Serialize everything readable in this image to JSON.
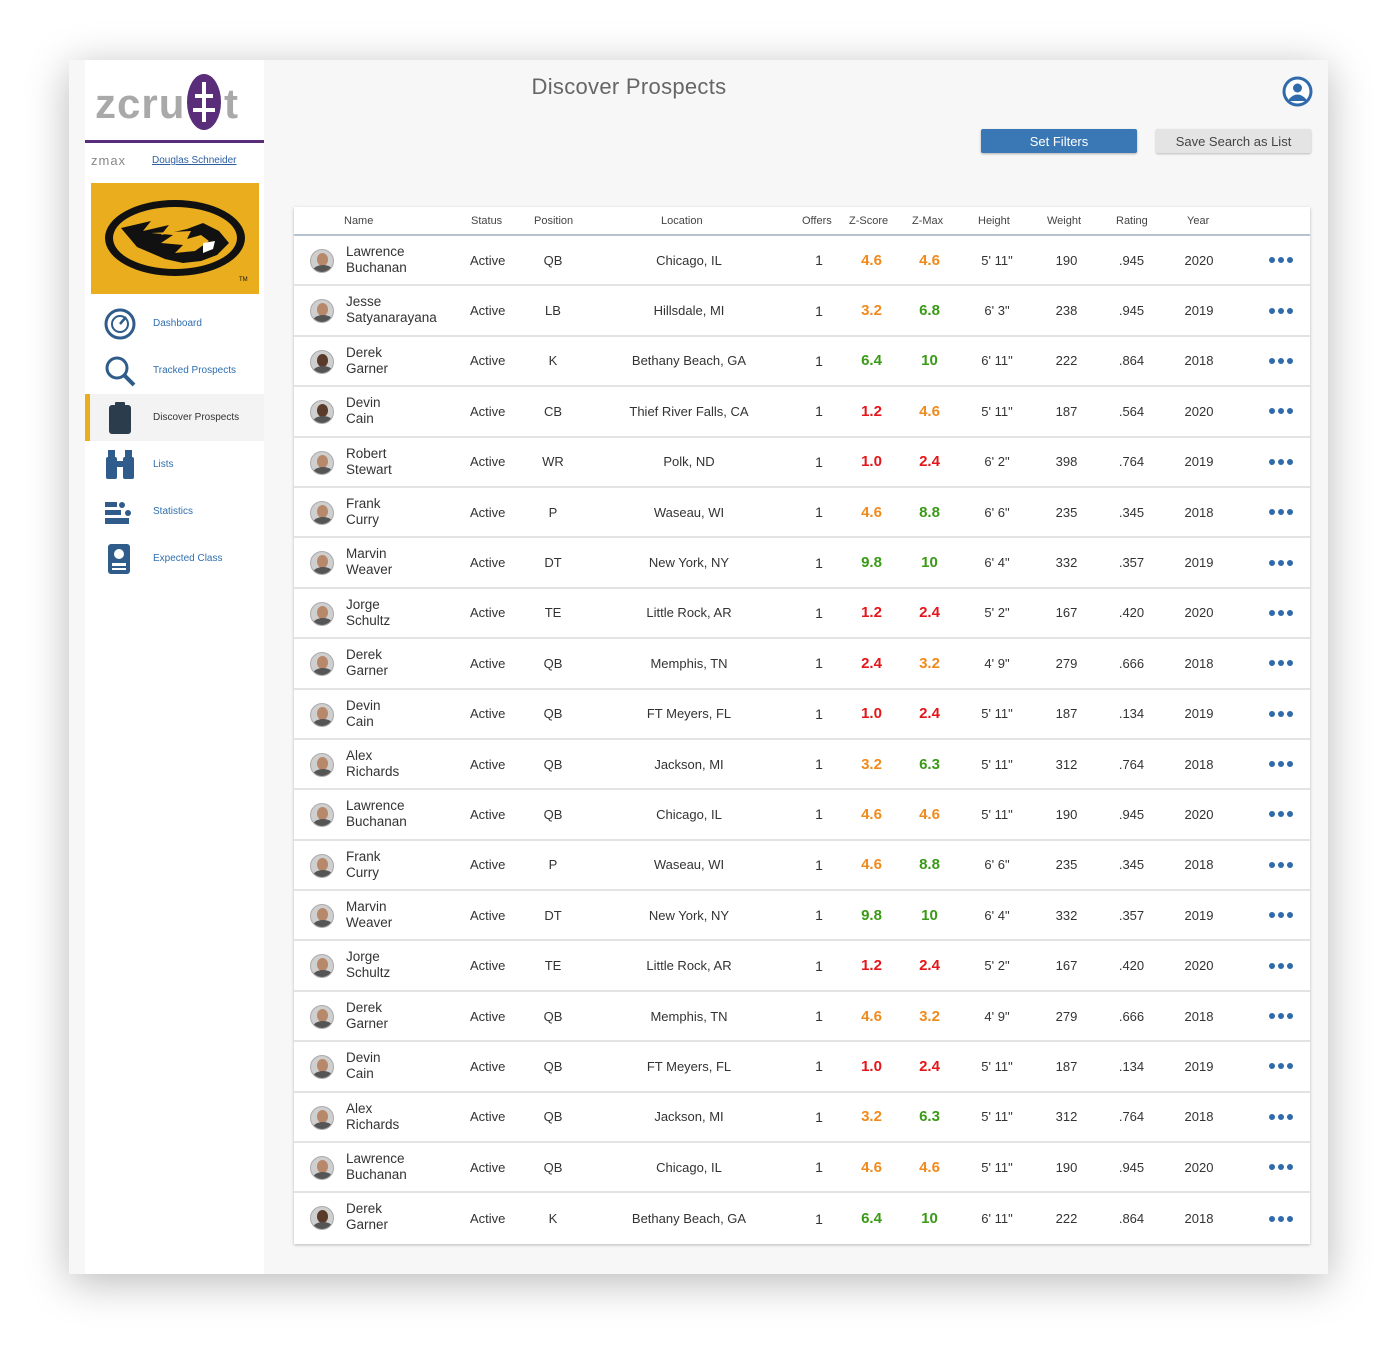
{
  "app": {
    "logo_text": "zcruit",
    "partner_text": "zmax",
    "user_name": "Douglas Schneider"
  },
  "page": {
    "title": "Discover Prospects"
  },
  "colors": {
    "accent": "#3a78b5",
    "brand_purple": "#5a2d7a",
    "team_gold": "#e9ad1e",
    "score_high": "#3a9a16",
    "score_mid": "#f08a1c",
    "score_low": "#e4161a"
  },
  "nav": [
    {
      "label": "Dashboard",
      "icon": "dashboard-gauge-icon"
    },
    {
      "label": "Tracked Prospects",
      "icon": "search-icon"
    },
    {
      "label": "Discover Prospects",
      "icon": "clipboard-icon",
      "active": true
    },
    {
      "label": "Lists",
      "icon": "binoculars-icon"
    },
    {
      "label": "Statistics",
      "icon": "statistics-icon"
    },
    {
      "label": "Expected Class",
      "icon": "id-badge-icon"
    }
  ],
  "buttons": {
    "filters": "Set Filters",
    "save": "Save Search as List"
  },
  "table": {
    "headers": {
      "name": "Name",
      "status": "Status",
      "position": "Position",
      "location": "Location",
      "offers": "Offers",
      "zscore": "Z-Score",
      "zmax": "Z-Max",
      "height": "Height",
      "weight": "Weight",
      "rating": "Rating",
      "year": "Year"
    },
    "rows": [
      {
        "first": "Lawrence",
        "last": "Buchanan",
        "status": "Active",
        "pos": "QB",
        "loc": "Chicago, IL",
        "offers": "1",
        "z": "4.6",
        "zc": "mid",
        "zm": "4.6",
        "zmc": "mid",
        "ht": "5' 11\"",
        "wt": "190",
        "rt": ".945",
        "yr": "2020",
        "dark": false
      },
      {
        "first": "Jesse",
        "last": "Satyanarayana",
        "status": "Active",
        "pos": "LB",
        "loc": "Hillsdale, MI",
        "offers": "1",
        "z": "3.2",
        "zc": "mid",
        "zm": "6.8",
        "zmc": "high",
        "ht": "6' 3\"",
        "wt": "238",
        "rt": ".945",
        "yr": "2019",
        "dark": false
      },
      {
        "first": "Derek",
        "last": "Garner",
        "status": "Active",
        "pos": "K",
        "loc": "Bethany Beach, GA",
        "offers": "1",
        "z": "6.4",
        "zc": "high",
        "zm": "10",
        "zmc": "high",
        "ht": "6' 11\"",
        "wt": "222",
        "rt": ".864",
        "yr": "2018",
        "dark": true
      },
      {
        "first": "Devin",
        "last": "Cain",
        "status": "Active",
        "pos": "CB",
        "loc": "Thief River Falls, CA",
        "offers": "1",
        "z": "1.2",
        "zc": "low",
        "zm": "4.6",
        "zmc": "mid",
        "ht": "5' 11\"",
        "wt": "187",
        "rt": ".564",
        "yr": "2020",
        "dark": true
      },
      {
        "first": "Robert",
        "last": "Stewart",
        "status": "Active",
        "pos": "WR",
        "loc": "Polk, ND",
        "offers": "1",
        "z": "1.0",
        "zc": "low",
        "zm": "2.4",
        "zmc": "low",
        "ht": "6' 2\"",
        "wt": "398",
        "rt": ".764",
        "yr": "2019",
        "dark": false
      },
      {
        "first": "Frank",
        "last": "Curry",
        "status": "Active",
        "pos": "P",
        "loc": "Waseau, WI",
        "offers": "1",
        "z": "4.6",
        "zc": "mid",
        "zm": "8.8",
        "zmc": "high",
        "ht": "6' 6\"",
        "wt": "235",
        "rt": ".345",
        "yr": "2018",
        "dark": false
      },
      {
        "first": "Marvin",
        "last": "Weaver",
        "status": "Active",
        "pos": "DT",
        "loc": "New York, NY",
        "offers": "1",
        "z": "9.8",
        "zc": "high",
        "zm": "10",
        "zmc": "high",
        "ht": "6' 4\"",
        "wt": "332",
        "rt": ".357",
        "yr": "2019",
        "dark": false
      },
      {
        "first": "Jorge",
        "last": "Schultz",
        "status": "Active",
        "pos": "TE",
        "loc": "Little Rock, AR",
        "offers": "1",
        "z": "1.2",
        "zc": "low",
        "zm": "2.4",
        "zmc": "low",
        "ht": "5' 2\"",
        "wt": "167",
        "rt": ".420",
        "yr": "2020",
        "dark": false
      },
      {
        "first": "Derek",
        "last": "Garner",
        "status": "Active",
        "pos": "QB",
        "loc": "Memphis, TN",
        "offers": "1",
        "z": "2.4",
        "zc": "low",
        "zm": "3.2",
        "zmc": "mid",
        "ht": "4' 9\"",
        "wt": "279",
        "rt": ".666",
        "yr": "2018",
        "dark": false
      },
      {
        "first": "Devin",
        "last": "Cain",
        "status": "Active",
        "pos": "QB",
        "loc": "FT Meyers, FL",
        "offers": "1",
        "z": "1.0",
        "zc": "low",
        "zm": "2.4",
        "zmc": "low",
        "ht": "5' 11\"",
        "wt": "187",
        "rt": ".134",
        "yr": "2019",
        "dark": false
      },
      {
        "first": "Alex",
        "last": "Richards",
        "status": "Active",
        "pos": "QB",
        "loc": "Jackson, MI",
        "offers": "1",
        "z": "3.2",
        "zc": "mid",
        "zm": "6.3",
        "zmc": "high",
        "ht": "5' 11\"",
        "wt": "312",
        "rt": ".764",
        "yr": "2018",
        "dark": false
      },
      {
        "first": "Lawrence",
        "last": "Buchanan",
        "status": "Active",
        "pos": "QB",
        "loc": "Chicago, IL",
        "offers": "1",
        "z": "4.6",
        "zc": "mid",
        "zm": "4.6",
        "zmc": "mid",
        "ht": "5' 11\"",
        "wt": "190",
        "rt": ".945",
        "yr": "2020",
        "dark": false
      },
      {
        "first": "Frank",
        "last": "Curry",
        "status": "Active",
        "pos": "P",
        "loc": "Waseau, WI",
        "offers": "1",
        "z": "4.6",
        "zc": "mid",
        "zm": "8.8",
        "zmc": "high",
        "ht": "6' 6\"",
        "wt": "235",
        "rt": ".345",
        "yr": "2018",
        "dark": false
      },
      {
        "first": "Marvin",
        "last": "Weaver",
        "status": "Active",
        "pos": "DT",
        "loc": "New York, NY",
        "offers": "1",
        "z": "9.8",
        "zc": "high",
        "zm": "10",
        "zmc": "high",
        "ht": "6' 4\"",
        "wt": "332",
        "rt": ".357",
        "yr": "2019",
        "dark": false
      },
      {
        "first": "Jorge",
        "last": "Schultz",
        "status": "Active",
        "pos": "TE",
        "loc": "Little Rock, AR",
        "offers": "1",
        "z": "1.2",
        "zc": "low",
        "zm": "2.4",
        "zmc": "low",
        "ht": "5' 2\"",
        "wt": "167",
        "rt": ".420",
        "yr": "2020",
        "dark": false
      },
      {
        "first": "Derek",
        "last": "Garner",
        "status": "Active",
        "pos": "QB",
        "loc": "Memphis, TN",
        "offers": "1",
        "z": "4.6",
        "zc": "mid",
        "zm": "3.2",
        "zmc": "mid",
        "ht": "4' 9\"",
        "wt": "279",
        "rt": ".666",
        "yr": "2018",
        "dark": false
      },
      {
        "first": "Devin",
        "last": "Cain",
        "status": "Active",
        "pos": "QB",
        "loc": "FT Meyers, FL",
        "offers": "1",
        "z": "1.0",
        "zc": "low",
        "zm": "2.4",
        "zmc": "low",
        "ht": "5' 11\"",
        "wt": "187",
        "rt": ".134",
        "yr": "2019",
        "dark": false
      },
      {
        "first": "Alex",
        "last": "Richards",
        "status": "Active",
        "pos": "QB",
        "loc": "Jackson, MI",
        "offers": "1",
        "z": "3.2",
        "zc": "mid",
        "zm": "6.3",
        "zmc": "high",
        "ht": "5' 11\"",
        "wt": "312",
        "rt": ".764",
        "yr": "2018",
        "dark": false
      },
      {
        "first": "Lawrence",
        "last": "Buchanan",
        "status": "Active",
        "pos": "QB",
        "loc": "Chicago, IL",
        "offers": "1",
        "z": "4.6",
        "zc": "mid",
        "zm": "4.6",
        "zmc": "mid",
        "ht": "5' 11\"",
        "wt": "190",
        "rt": ".945",
        "yr": "2020",
        "dark": false
      },
      {
        "first": "Derek",
        "last": "Garner",
        "status": "Active",
        "pos": "K",
        "loc": "Bethany Beach, GA",
        "offers": "1",
        "z": "6.4",
        "zc": "high",
        "zm": "10",
        "zmc": "high",
        "ht": "6' 11\"",
        "wt": "222",
        "rt": ".864",
        "yr": "2018",
        "dark": true
      }
    ]
  }
}
